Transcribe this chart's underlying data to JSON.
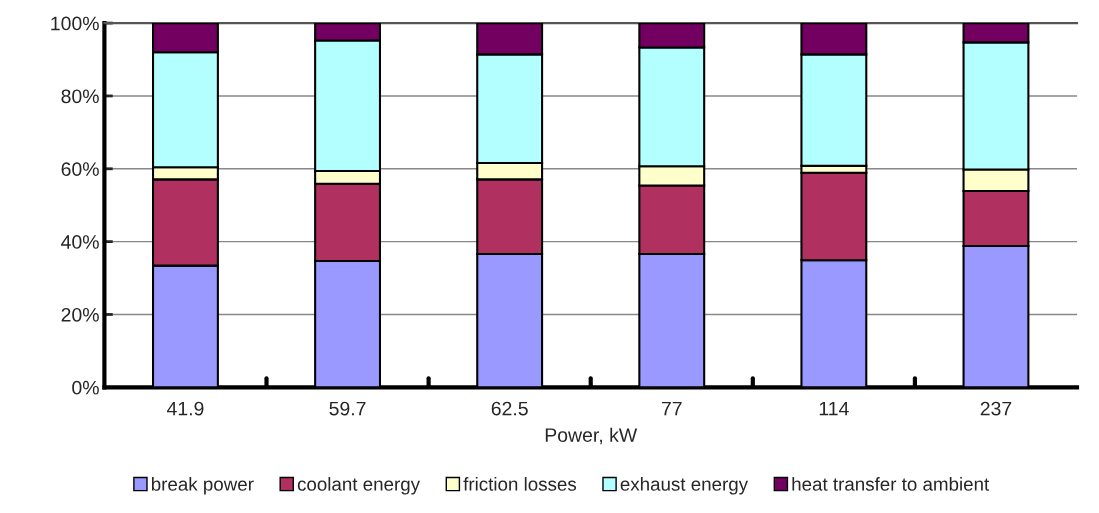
{
  "chart_data": {
    "type": "bar",
    "stacked": true,
    "xlabel": "Power, kW",
    "categories": [
      "41.9",
      "59.7",
      "62.5",
      "77",
      "114",
      "237"
    ],
    "series": [
      {
        "name": "break power",
        "color": "#9999ff",
        "values": [
          33.4,
          34.7,
          36.6,
          36.6,
          34.9,
          38.8
        ]
      },
      {
        "name": "coolant energy",
        "color": "#b03060",
        "values": [
          23.7,
          21.2,
          20.5,
          18.8,
          24.0,
          15.1
        ]
      },
      {
        "name": "friction losses",
        "color": "#ffffcc",
        "values": [
          3.3,
          3.5,
          4.5,
          5.3,
          1.9,
          5.9
        ]
      },
      {
        "name": "exhaust energy",
        "color": "#b3ffff",
        "values": [
          31.6,
          35.8,
          29.8,
          32.6,
          30.6,
          34.9
        ]
      },
      {
        "name": "heat transfer to ambient",
        "color": "#730060",
        "values": [
          8.0,
          4.8,
          8.6,
          6.7,
          8.6,
          5.3
        ]
      }
    ],
    "ylim": [
      0,
      100
    ],
    "yticks": [
      {
        "value": 0,
        "label": "0%"
      },
      {
        "value": 20,
        "label": "20%"
      },
      {
        "value": 40,
        "label": "40%"
      },
      {
        "value": 60,
        "label": "60%"
      },
      {
        "value": 80,
        "label": "80%"
      },
      {
        "value": 100,
        "label": "100%"
      }
    ],
    "grid": "y",
    "legend": "bottom"
  }
}
